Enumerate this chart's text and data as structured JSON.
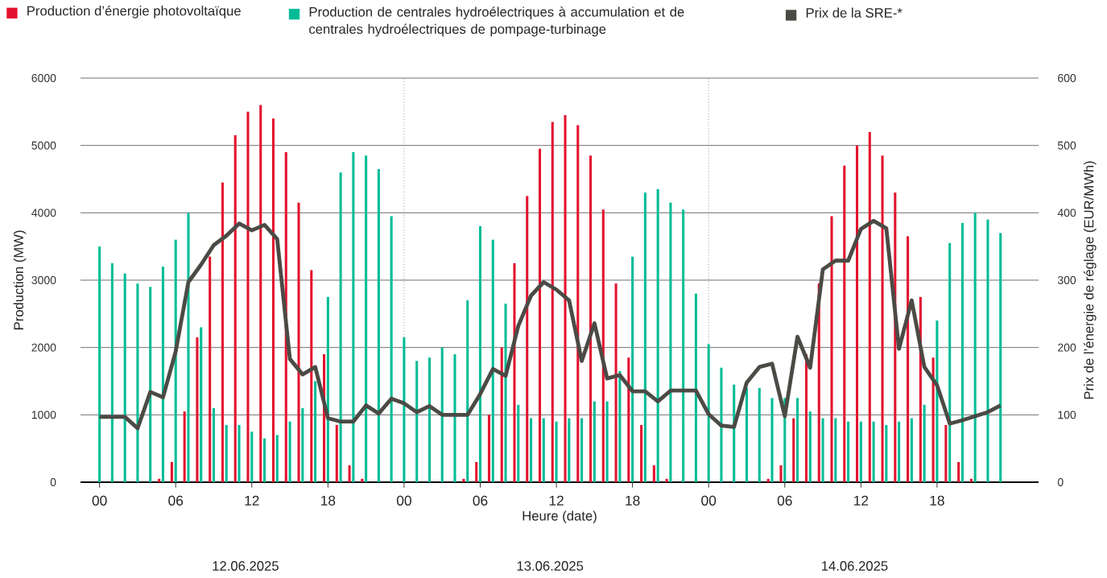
{
  "chart_data": {
    "type": "bar",
    "xlabel": "Heure (date)",
    "ylabel": "Production (MW)",
    "y2label": "Prix de l’énergie de réglage (EUR/MWh)",
    "x": [
      0,
      1,
      2,
      3,
      4,
      5,
      6,
      7,
      8,
      9,
      10,
      11,
      12,
      13,
      14,
      15,
      16,
      17,
      18,
      19,
      20,
      21,
      22,
      23,
      24,
      25,
      26,
      27,
      28,
      29,
      30,
      31,
      32,
      33,
      34,
      35,
      36,
      37,
      38,
      39,
      40,
      41,
      42,
      43,
      44,
      45,
      46,
      47,
      48,
      49,
      50,
      51,
      52,
      53,
      54,
      55,
      56,
      57,
      58,
      59,
      60,
      61,
      62,
      63,
      64,
      65,
      66,
      67,
      68,
      69,
      70,
      71
    ],
    "series": [
      {
        "name": "Production d’énergie photovoltaïque",
        "color": "#e3122e",
        "values": [
          0,
          0,
          0,
          0,
          0,
          50,
          300,
          1050,
          2150,
          3350,
          4450,
          5150,
          5500,
          5600,
          5400,
          4900,
          4150,
          3150,
          1900,
          850,
          250,
          50,
          0,
          0,
          0,
          0,
          0,
          0,
          0,
          50,
          300,
          1000,
          2000,
          3250,
          4250,
          4950,
          5350,
          5450,
          5300,
          4850,
          4050,
          2950,
          1850,
          850,
          250,
          50,
          0,
          0,
          0,
          0,
          0,
          0,
          0,
          50,
          250,
          950,
          1900,
          2950,
          3950,
          4700,
          5000,
          5200,
          4850,
          4300,
          3650,
          2750,
          1850,
          850,
          300,
          50,
          0,
          0
        ]
      },
      {
        "name": "Production de centrales hydroélectriques à accumulation et de centrales hydroélectriques de pompage-turbinage",
        "color": "#00bc96",
        "values": [
          3500,
          3250,
          3100,
          2950,
          2900,
          3200,
          3600,
          4000,
          2300,
          1100,
          850,
          850,
          750,
          650,
          700,
          900,
          1100,
          1500,
          2750,
          4600,
          4900,
          4850,
          4650,
          3950,
          2150,
          1800,
          1850,
          2000,
          1900,
          2700,
          3800,
          3600,
          2650,
          1150,
          950,
          950,
          900,
          950,
          950,
          1200,
          1200,
          1650,
          3350,
          4300,
          4350,
          4150,
          4050,
          2800,
          2050,
          1700,
          1450,
          1400,
          1400,
          1250,
          1250,
          1250,
          1050,
          950,
          950,
          900,
          900,
          900,
          850,
          900,
          950,
          1150,
          2400,
          3550,
          3850,
          4000,
          3900,
          3700
        ]
      },
      {
        "name": "Prix de la SRE-*",
        "type": "line",
        "axis": "y2",
        "color": "#4b4a45",
        "values": [
          97,
          97,
          97,
          80,
          134,
          126,
          194,
          297,
          323,
          352,
          366,
          384,
          374,
          382,
          361,
          183,
          160,
          171,
          95,
          90,
          90,
          114,
          102,
          124,
          117,
          104,
          113,
          100,
          100,
          100,
          131,
          168,
          158,
          232,
          277,
          297,
          286,
          270,
          180,
          236,
          154,
          159,
          135,
          135,
          120,
          136,
          136,
          136,
          101,
          84,
          82,
          148,
          171,
          176,
          98,
          216,
          170,
          316,
          329,
          329,
          376,
          388,
          377,
          198,
          270,
          171,
          144,
          87,
          92,
          98,
          104,
          114
        ]
      }
    ],
    "xlim": [
      -1.5,
      74
    ],
    "xticks": [
      {
        "value": 0,
        "label": "00"
      },
      {
        "value": 6,
        "label": "06"
      },
      {
        "value": 12,
        "label": "12"
      },
      {
        "value": 18,
        "label": "18"
      },
      {
        "value": 24,
        "label": "00"
      },
      {
        "value": 30,
        "label": "06"
      },
      {
        "value": 36,
        "label": "12"
      },
      {
        "value": 42,
        "label": "18"
      },
      {
        "value": 48,
        "label": "00"
      },
      {
        "value": 54,
        "label": "06"
      },
      {
        "value": 60,
        "label": "12"
      },
      {
        "value": 66,
        "label": "18"
      }
    ],
    "ylim": [
      0,
      6000
    ],
    "yticks": [
      0,
      1000,
      2000,
      3000,
      4000,
      5000,
      6000
    ],
    "y2lim": [
      0,
      600
    ],
    "y2ticks": [
      0,
      100,
      200,
      300,
      400,
      500,
      600
    ],
    "ref_lines": [
      {
        "axis": "x",
        "value": 24,
        "line_style": "dotted",
        "color": "#888888"
      },
      {
        "axis": "x",
        "value": 48,
        "line_style": "dotted",
        "color": "#888888"
      }
    ],
    "annotations": [
      "12.06.2025",
      "13.06.2025",
      "14.06.2025"
    ],
    "grid": "y",
    "legend": "top",
    "line_style": "solid"
  }
}
